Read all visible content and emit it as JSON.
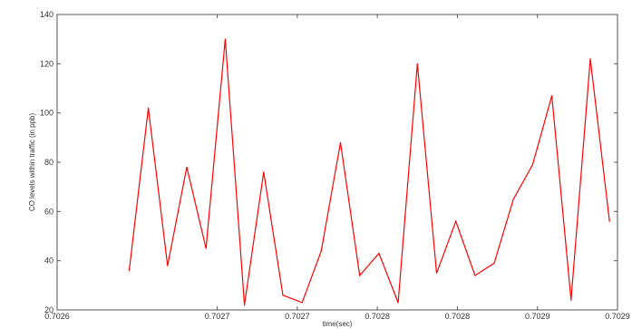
{
  "chart_data": {
    "type": "line",
    "title": "",
    "xlabel": "time(sec)",
    "ylabel": "CO levels within traffic (in ppb)",
    "xlim": [
      0.7026,
      0.70295
    ],
    "ylim": [
      20,
      140
    ],
    "x_ticks": [
      0.7026,
      0.7027,
      0.70275,
      0.7028,
      0.70285,
      0.7029,
      0.70295
    ],
    "x_tick_labels": [
      "0.7026",
      "0.7027",
      "0.7027",
      "0.7028",
      "0.7028",
      "0.7029",
      "0.7029"
    ],
    "y_ticks": [
      20,
      40,
      60,
      80,
      100,
      120,
      140
    ],
    "y_tick_labels": [
      "20",
      "40",
      "60",
      "80",
      "100",
      "120",
      "140"
    ],
    "grid": false,
    "series": [
      {
        "color": "#ff0000",
        "x": [
          0.702645,
          0.702657,
          0.702669,
          0.702681,
          0.702693,
          0.702705,
          0.702717,
          0.702729,
          0.702741,
          0.702753,
          0.702765,
          0.702777,
          0.702789,
          0.702801,
          0.702813,
          0.702825,
          0.702837,
          0.702849,
          0.702861,
          0.702873,
          0.702885,
          0.702897,
          0.702909,
          0.702921,
          0.702933,
          0.702945
        ],
        "values": [
          36,
          102,
          38,
          78,
          45,
          130,
          22,
          76,
          26,
          23,
          44,
          88,
          34,
          43,
          23,
          120,
          35,
          56,
          34,
          39,
          65,
          79,
          107,
          24,
          122,
          56
        ]
      }
    ]
  }
}
